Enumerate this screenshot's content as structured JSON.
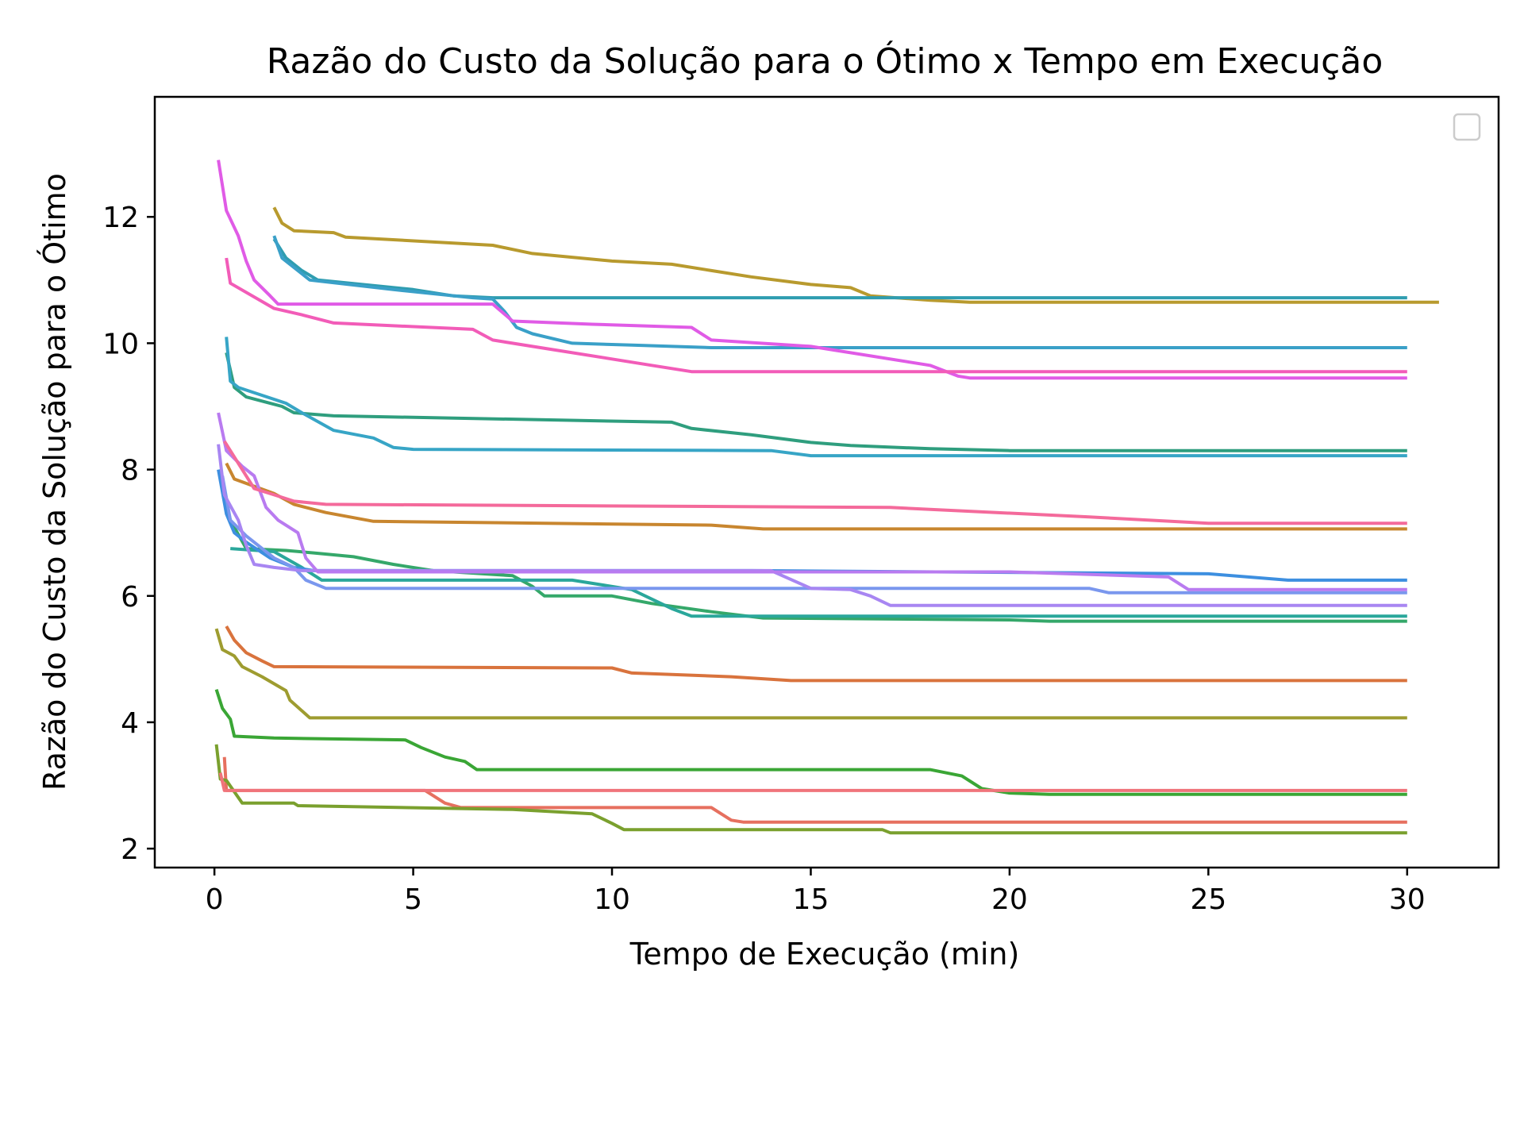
{
  "chart_data": {
    "type": "line",
    "title": "Razão do Custo da Solução para o Ótimo x Tempo em Execução",
    "xlabel": "Tempo de Execução (min)",
    "ylabel": "Razão do Custo da Solução para o Ótimo",
    "xlim": [
      -1.5,
      32.3
    ],
    "ylim": [
      1.7,
      13.9
    ],
    "xticks": [
      "0",
      "5",
      "10",
      "15",
      "20",
      "25",
      "30"
    ],
    "yticks": [
      "2",
      "4",
      "6",
      "8",
      "10",
      "12"
    ],
    "legend": "top-right (empty)",
    "grid": false,
    "series": [
      {
        "color": "#e6705f",
        "points": [
          [
            0.25,
            3.45
          ],
          [
            0.3,
            2.92
          ],
          [
            5.3,
            2.92
          ],
          [
            5.8,
            2.72
          ],
          [
            6.2,
            2.65
          ],
          [
            12.5,
            2.65
          ],
          [
            13.0,
            2.45
          ],
          [
            13.3,
            2.42
          ],
          [
            30,
            2.42
          ]
        ]
      },
      {
        "color": "#d9733d",
        "points": [
          [
            0.3,
            5.52
          ],
          [
            0.5,
            5.3
          ],
          [
            0.8,
            5.1
          ],
          [
            1.2,
            4.97
          ],
          [
            1.5,
            4.88
          ],
          [
            10.0,
            4.86
          ],
          [
            10.5,
            4.78
          ],
          [
            13.0,
            4.72
          ],
          [
            14.5,
            4.66
          ],
          [
            30,
            4.66
          ]
        ]
      },
      {
        "color": "#c8862f",
        "points": [
          [
            0.3,
            8.1
          ],
          [
            0.5,
            7.85
          ],
          [
            1.5,
            7.62
          ],
          [
            2.0,
            7.45
          ],
          [
            2.8,
            7.32
          ],
          [
            4.0,
            7.18
          ],
          [
            12.5,
            7.12
          ],
          [
            13.8,
            7.06
          ],
          [
            30,
            7.06
          ]
        ]
      },
      {
        "color": "#b89a2e",
        "points": [
          [
            1.5,
            12.15
          ],
          [
            1.7,
            11.9
          ],
          [
            2.0,
            11.78
          ],
          [
            3.0,
            11.75
          ],
          [
            3.3,
            11.68
          ],
          [
            7.0,
            11.55
          ],
          [
            8.0,
            11.42
          ],
          [
            10.0,
            11.3
          ],
          [
            11.5,
            11.25
          ],
          [
            12.5,
            11.15
          ],
          [
            13.5,
            11.05
          ],
          [
            15.0,
            10.93
          ],
          [
            16.0,
            10.88
          ],
          [
            16.5,
            10.75
          ],
          [
            18.0,
            10.68
          ],
          [
            19.0,
            10.65
          ],
          [
            30.8,
            10.65
          ]
        ]
      },
      {
        "color": "#9e9c30",
        "points": [
          [
            0.05,
            5.48
          ],
          [
            0.2,
            5.15
          ],
          [
            0.5,
            5.05
          ],
          [
            0.7,
            4.88
          ],
          [
            1.2,
            4.72
          ],
          [
            1.8,
            4.5
          ],
          [
            1.9,
            4.35
          ],
          [
            2.4,
            4.07
          ],
          [
            30,
            4.07
          ]
        ]
      },
      {
        "color": "#7aa02e",
        "points": [
          [
            0.05,
            3.65
          ],
          [
            0.15,
            3.1
          ],
          [
            0.3,
            3.08
          ],
          [
            0.7,
            2.72
          ],
          [
            2.0,
            2.72
          ],
          [
            2.1,
            2.68
          ],
          [
            7.5,
            2.62
          ],
          [
            9.5,
            2.55
          ],
          [
            10.0,
            2.4
          ],
          [
            10.3,
            2.3
          ],
          [
            16.8,
            2.3
          ],
          [
            17.0,
            2.25
          ],
          [
            30,
            2.25
          ]
        ]
      },
      {
        "color": "#3aa635",
        "points": [
          [
            0.05,
            4.52
          ],
          [
            0.2,
            4.22
          ],
          [
            0.4,
            4.05
          ],
          [
            0.5,
            3.78
          ],
          [
            1.5,
            3.75
          ],
          [
            4.8,
            3.72
          ],
          [
            5.2,
            3.6
          ],
          [
            5.8,
            3.45
          ],
          [
            6.3,
            3.38
          ],
          [
            6.6,
            3.25
          ],
          [
            18.0,
            3.25
          ],
          [
            18.8,
            3.15
          ],
          [
            19.3,
            2.95
          ],
          [
            20.0,
            2.88
          ],
          [
            21.0,
            2.86
          ],
          [
            30,
            2.86
          ]
        ]
      },
      {
        "color": "#35a86a",
        "points": [
          [
            0.2,
            7.75
          ],
          [
            0.4,
            7.2
          ],
          [
            0.8,
            6.75
          ],
          [
            1.8,
            6.72
          ],
          [
            2.5,
            6.68
          ],
          [
            3.5,
            6.62
          ],
          [
            4.5,
            6.5
          ],
          [
            5.5,
            6.4
          ],
          [
            7.5,
            6.32
          ],
          [
            8.0,
            6.15
          ],
          [
            8.3,
            6.0
          ],
          [
            10.0,
            6.0
          ],
          [
            11.0,
            5.88
          ],
          [
            12.5,
            5.75
          ],
          [
            13.8,
            5.65
          ],
          [
            20.0,
            5.62
          ],
          [
            21.0,
            5.6
          ],
          [
            30,
            5.6
          ]
        ]
      },
      {
        "color": "#2f9e7e",
        "points": [
          [
            0.3,
            9.85
          ],
          [
            0.5,
            9.3
          ],
          [
            0.8,
            9.15
          ],
          [
            1.7,
            9.0
          ],
          [
            2.0,
            8.9
          ],
          [
            3.0,
            8.85
          ],
          [
            11.5,
            8.75
          ],
          [
            12.0,
            8.65
          ],
          [
            13.5,
            8.55
          ],
          [
            15.0,
            8.43
          ],
          [
            16.0,
            8.38
          ],
          [
            18.0,
            8.33
          ],
          [
            20.0,
            8.3
          ],
          [
            30,
            8.3
          ]
        ]
      },
      {
        "color": "#2aa79b",
        "points": [
          [
            0.4,
            6.75
          ],
          [
            1.5,
            6.7
          ],
          [
            2.2,
            6.45
          ],
          [
            2.7,
            6.25
          ],
          [
            9.0,
            6.25
          ],
          [
            10.5,
            6.1
          ],
          [
            11.5,
            5.8
          ],
          [
            12.0,
            5.68
          ],
          [
            30,
            5.68
          ]
        ]
      },
      {
        "color": "#2f9db0",
        "points": [
          [
            1.5,
            11.65
          ],
          [
            1.8,
            11.35
          ],
          [
            2.2,
            11.15
          ],
          [
            2.6,
            11.0
          ],
          [
            5.0,
            10.85
          ],
          [
            6.0,
            10.75
          ],
          [
            7.0,
            10.72
          ],
          [
            30,
            10.72
          ]
        ]
      },
      {
        "color": "#37a5c6",
        "points": [
          [
            0.3,
            10.1
          ],
          [
            0.4,
            9.4
          ],
          [
            0.6,
            9.3
          ],
          [
            1.8,
            9.05
          ],
          [
            2.2,
            8.9
          ],
          [
            3.0,
            8.62
          ],
          [
            4.0,
            8.5
          ],
          [
            4.5,
            8.35
          ],
          [
            5.0,
            8.32
          ],
          [
            14.0,
            8.3
          ],
          [
            15.0,
            8.22
          ],
          [
            30,
            8.22
          ]
        ]
      },
      {
        "color": "#3aa0c8",
        "points": [
          [
            1.5,
            11.7
          ],
          [
            1.7,
            11.35
          ],
          [
            2.4,
            11.0
          ],
          [
            4.5,
            10.85
          ],
          [
            6.5,
            10.72
          ],
          [
            7.0,
            10.7
          ],
          [
            7.3,
            10.5
          ],
          [
            7.6,
            10.25
          ],
          [
            8.0,
            10.15
          ],
          [
            9.0,
            10.0
          ],
          [
            10.5,
            9.97
          ],
          [
            12.5,
            9.93
          ],
          [
            30,
            9.93
          ]
        ]
      },
      {
        "color": "#3d8fe0",
        "points": [
          [
            0.1,
            8.0
          ],
          [
            0.3,
            7.3
          ],
          [
            0.5,
            7.0
          ],
          [
            0.8,
            6.85
          ],
          [
            1.4,
            6.6
          ],
          [
            2.0,
            6.45
          ],
          [
            2.5,
            6.4
          ],
          [
            13.5,
            6.4
          ],
          [
            25.0,
            6.35
          ],
          [
            27.0,
            6.25
          ],
          [
            30,
            6.25
          ]
        ]
      },
      {
        "color": "#7a97ee",
        "points": [
          [
            0.2,
            7.9
          ],
          [
            0.4,
            7.2
          ],
          [
            0.8,
            6.95
          ],
          [
            1.5,
            6.6
          ],
          [
            2.0,
            6.45
          ],
          [
            2.3,
            6.25
          ],
          [
            2.8,
            6.12
          ],
          [
            22.0,
            6.12
          ],
          [
            22.5,
            6.05
          ],
          [
            30,
            6.05
          ]
        ]
      },
      {
        "color": "#a886f2",
        "points": [
          [
            0.1,
            8.4
          ],
          [
            0.25,
            7.6
          ],
          [
            0.6,
            7.2
          ],
          [
            0.8,
            6.8
          ],
          [
            1.0,
            6.5
          ],
          [
            1.5,
            6.45
          ],
          [
            2.2,
            6.4
          ],
          [
            14.0,
            6.4
          ],
          [
            15.0,
            6.12
          ],
          [
            16.0,
            6.1
          ],
          [
            16.5,
            6.0
          ],
          [
            17.0,
            5.85
          ],
          [
            30,
            5.85
          ]
        ]
      },
      {
        "color": "#b97bf0",
        "points": [
          [
            0.1,
            8.9
          ],
          [
            0.3,
            8.3
          ],
          [
            0.7,
            8.05
          ],
          [
            1.0,
            7.9
          ],
          [
            1.3,
            7.4
          ],
          [
            1.6,
            7.2
          ],
          [
            2.1,
            7.0
          ],
          [
            2.3,
            6.6
          ],
          [
            2.6,
            6.38
          ],
          [
            20.0,
            6.38
          ],
          [
            24.0,
            6.3
          ],
          [
            24.5,
            6.1
          ],
          [
            30,
            6.1
          ]
        ]
      },
      {
        "color": "#e05be6",
        "points": [
          [
            0.1,
            12.9
          ],
          [
            0.3,
            12.1
          ],
          [
            0.6,
            11.7
          ],
          [
            0.8,
            11.3
          ],
          [
            1.0,
            11.0
          ],
          [
            1.4,
            10.75
          ],
          [
            1.6,
            10.62
          ],
          [
            7.0,
            10.62
          ],
          [
            7.5,
            10.35
          ],
          [
            9.5,
            10.3
          ],
          [
            12.0,
            10.25
          ],
          [
            12.5,
            10.05
          ],
          [
            15.0,
            9.95
          ],
          [
            15.5,
            9.9
          ],
          [
            18.0,
            9.65
          ],
          [
            18.7,
            9.48
          ],
          [
            19.0,
            9.45
          ],
          [
            30,
            9.45
          ]
        ]
      },
      {
        "color": "#f25cb8",
        "points": [
          [
            0.3,
            11.35
          ],
          [
            0.4,
            10.95
          ],
          [
            1.5,
            10.55
          ],
          [
            2.2,
            10.45
          ],
          [
            3.0,
            10.32
          ],
          [
            6.5,
            10.22
          ],
          [
            7.0,
            10.05
          ],
          [
            8.5,
            9.9
          ],
          [
            10.0,
            9.75
          ],
          [
            11.0,
            9.65
          ],
          [
            12.0,
            9.55
          ],
          [
            30,
            9.55
          ]
        ]
      },
      {
        "color": "#f46a9b",
        "points": [
          [
            0.25,
            8.45
          ],
          [
            0.5,
            8.2
          ],
          [
            1.0,
            7.7
          ],
          [
            1.5,
            7.6
          ],
          [
            2.0,
            7.5
          ],
          [
            2.8,
            7.45
          ],
          [
            17.0,
            7.4
          ],
          [
            22.0,
            7.25
          ],
          [
            25.0,
            7.15
          ],
          [
            30,
            7.15
          ]
        ]
      },
      {
        "color": "#f0747b",
        "points": [
          [
            0.15,
            3.2
          ],
          [
            0.25,
            2.92
          ],
          [
            30,
            2.92
          ]
        ]
      }
    ]
  }
}
